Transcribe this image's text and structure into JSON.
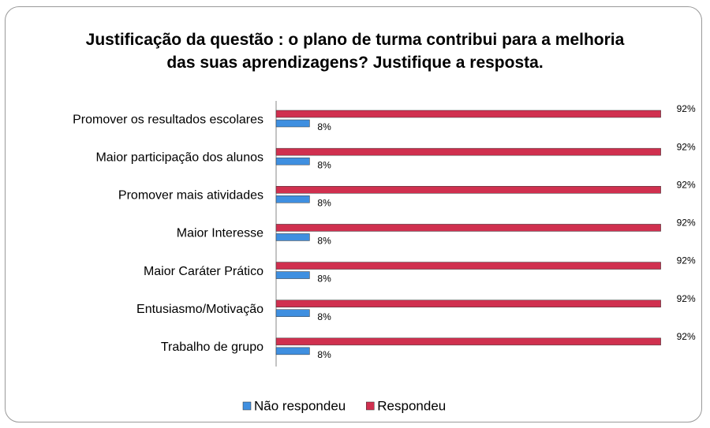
{
  "chart_data": {
    "type": "bar",
    "orientation": "horizontal",
    "title": "Justificação da questão : o plano de turma contribui para a melhoria das suas aprendizagens? Justifique a resposta.",
    "categories": [
      "Promover os resultados escolares",
      "Maior participação dos alunos",
      "Promover mais atividades",
      "Maior Interesse",
      "Maior Caráter Prático",
      "Entusiasmo/Motivação",
      "Trabalho de grupo"
    ],
    "series": [
      {
        "name": "Não respondeu",
        "color": "#3f8fe0",
        "values": [
          8,
          8,
          8,
          8,
          8,
          8,
          8
        ],
        "value_labels": [
          "8%",
          "8%",
          "8%",
          "8%",
          "8%",
          "8%",
          "8%"
        ]
      },
      {
        "name": "Respondeu",
        "color": "#d0304f",
        "values": [
          92,
          92,
          92,
          92,
          92,
          92,
          92
        ],
        "value_labels": [
          "92%",
          "92%",
          "92%",
          "92%",
          "92%",
          "92%",
          "92%"
        ]
      }
    ],
    "xlim": [
      0,
      100
    ],
    "legend": "bottom"
  }
}
